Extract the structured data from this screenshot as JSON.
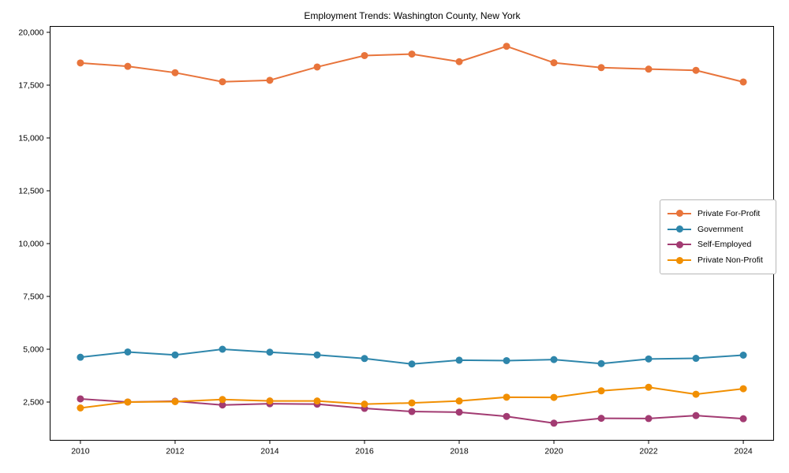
{
  "title": "Employment Trends: Washington County, New York",
  "chart_data": {
    "type": "line",
    "title": "Employment Trends: Washington County, New York",
    "xlabel": "",
    "ylabel": "",
    "grid": false,
    "legend_position": "center-right",
    "background_color": "#ffffff",
    "axis_color": "#000000",
    "x": [
      2010,
      2011,
      2012,
      2013,
      2014,
      2015,
      2016,
      2017,
      2018,
      2019,
      2020,
      2021,
      2022,
      2023,
      2024
    ],
    "x_tick_labels": [
      "2010",
      "2012",
      "2014",
      "2016",
      "2018",
      "2020",
      "2022",
      "2024"
    ],
    "x_tick_values": [
      2010,
      2012,
      2014,
      2016,
      2018,
      2020,
      2022,
      2024
    ],
    "y_tick_labels": [
      "2,500",
      "5,000",
      "7,500",
      "10,000",
      "12,500",
      "15,000",
      "17,500",
      "20,000"
    ],
    "y_tick_values": [
      2500,
      5000,
      7500,
      10000,
      12500,
      15000,
      17500,
      20000
    ],
    "xlim": [
      2009.36,
      2024.64
    ],
    "ylim": [
      690,
      20280
    ],
    "series": [
      {
        "name": "Private For-Profit",
        "color": "#E8743B",
        "values": [
          18550,
          18390,
          18090,
          17660,
          17730,
          18360,
          18900,
          18970,
          18610,
          19340,
          18560,
          18330,
          18260,
          18200,
          17650
        ]
      },
      {
        "name": "Government",
        "color": "#2E86AB",
        "values": [
          4620,
          4870,
          4730,
          5000,
          4860,
          4730,
          4560,
          4300,
          4480,
          4460,
          4510,
          4320,
          4540,
          4570,
          4720
        ]
      },
      {
        "name": "Self-Employed",
        "color": "#A23B72",
        "values": [
          2650,
          2500,
          2540,
          2360,
          2420,
          2400,
          2200,
          2050,
          2020,
          1820,
          1500,
          1730,
          1720,
          1860,
          1710
        ]
      },
      {
        "name": "Private Non-Profit",
        "color": "#F18F01",
        "values": [
          2220,
          2500,
          2520,
          2620,
          2550,
          2550,
          2400,
          2460,
          2550,
          2730,
          2720,
          3030,
          3200,
          2870,
          3130
        ]
      }
    ]
  }
}
